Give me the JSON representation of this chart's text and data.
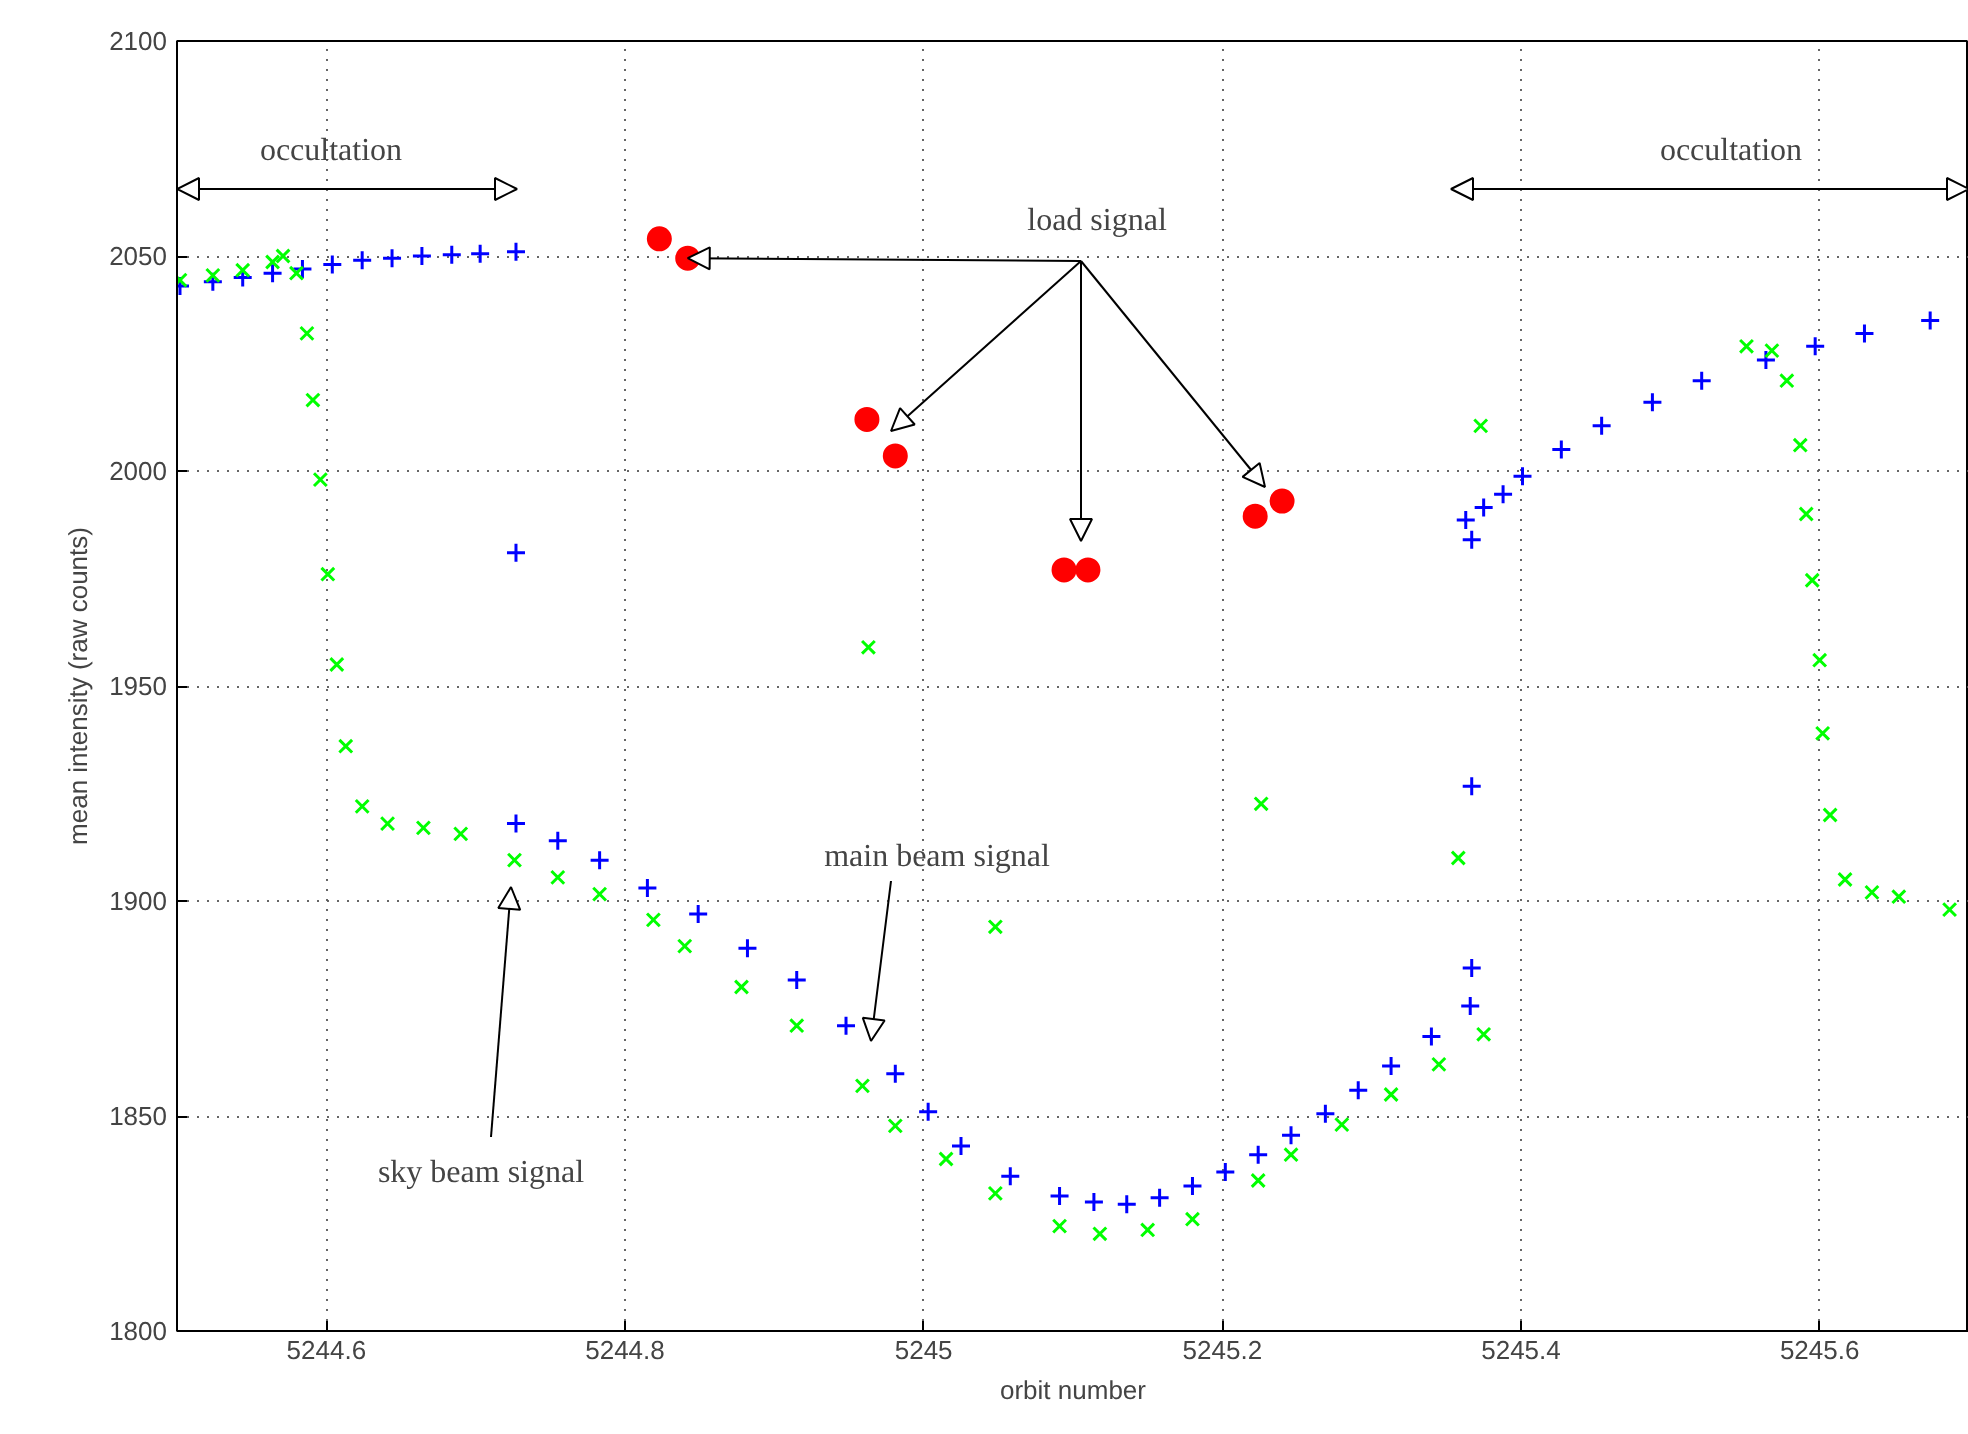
{
  "chart_data": {
    "type": "scatter",
    "xlabel": "orbit number",
    "ylabel": "mean intensity (raw counts)",
    "xlim": [
      5244.5,
      5245.7
    ],
    "ylim": [
      1800,
      2100
    ],
    "xticks": [
      5244.6,
      5244.8,
      5245,
      5245.2,
      5245.4,
      5245.6
    ],
    "yticks": [
      1800,
      1850,
      1900,
      1950,
      2000,
      2050,
      2100
    ],
    "grid": true,
    "series": [
      {
        "color": "#0000ff",
        "marker": "cross",
        "x": [
          5244.502,
          5244.524,
          5244.544,
          5244.564,
          5244.584,
          5244.604,
          5244.624,
          5244.644,
          5244.664,
          5244.684,
          5244.703,
          5244.727,
          5244.727,
          5244.727,
          5244.755,
          5244.783,
          5244.815,
          5244.849,
          5244.882,
          5244.915,
          5244.948,
          5244.981,
          5245.003,
          5245.025,
          5245.058,
          5245.091,
          5245.114,
          5245.136,
          5245.158,
          5245.18,
          5245.202,
          5245.224,
          5245.246,
          5245.269,
          5245.291,
          5245.313,
          5245.34,
          5245.366,
          5245.367,
          5245.367,
          5245.367,
          5245.363,
          5245.375,
          5245.388,
          5245.401,
          5245.427,
          5245.454,
          5245.488,
          5245.521,
          5245.564,
          5245.597,
          5245.63,
          5245.674
        ],
        "values": [
          2043,
          2044,
          2045,
          2046,
          2047,
          2048,
          2049,
          2049.5,
          2050,
          2050.3,
          2050.5,
          2051,
          1981,
          1918,
          1914,
          1909.5,
          1903,
          1897,
          1889,
          1881.6,
          1871,
          1859.8,
          1851,
          1843,
          1836,
          1831.4,
          1830,
          1829.5,
          1831,
          1833.7,
          1837,
          1841,
          1845.5,
          1850.5,
          1856,
          1861.6,
          1868.5,
          1875.6,
          1926.7,
          1884.4,
          1984,
          1988.6,
          1991.5,
          1994.6,
          1998.8,
          2005,
          2010.5,
          2016,
          2021,
          2025.8,
          2029,
          2032,
          2035
        ]
      },
      {
        "color": "#00ff00",
        "marker": "x",
        "x": [
          5244.502,
          5244.524,
          5244.544,
          5244.564,
          5244.571,
          5244.58,
          5244.587,
          5244.591,
          5244.596,
          5244.601,
          5244.607,
          5244.613,
          5244.624,
          5244.641,
          5244.665,
          5244.69,
          5244.726,
          5244.755,
          5244.783,
          5244.819,
          5244.84,
          5244.878,
          5244.915,
          5244.959,
          5244.981,
          5245.015,
          5245.048,
          5245.091,
          5245.118,
          5245.15,
          5245.18,
          5245.224,
          5245.246,
          5245.28,
          5245.313,
          5245.345,
          5245.375,
          5244.963,
          5245.048,
          5245.226,
          5245.358,
          5245.373,
          5245.551,
          5245.568,
          5245.578,
          5245.587,
          5245.591,
          5245.595,
          5245.6,
          5245.602,
          5245.607,
          5245.617,
          5245.635,
          5245.653,
          5245.687
        ],
        "values": [
          2044.4,
          2045.5,
          2046.7,
          2048.6,
          2050,
          2046,
          2032,
          2016.5,
          1998,
          1976,
          1955,
          1936,
          1922,
          1918,
          1917,
          1915.6,
          1909.5,
          1905.5,
          1901.6,
          1895.6,
          1889.5,
          1880,
          1871,
          1857,
          1847.7,
          1840,
          1832,
          1824.4,
          1822.6,
          1823.5,
          1826,
          1835,
          1841,
          1848,
          1855,
          1862,
          1869,
          1959,
          1894,
          1922.6,
          1910,
          2010.5,
          2029,
          2028,
          2021,
          2006,
          1990,
          1974.6,
          1956,
          1939,
          1920,
          1905,
          1902,
          1901,
          1898
        ]
      },
      {
        "color": "#ff0000",
        "marker": "circle",
        "x": [
          5244.823,
          5244.842,
          5244.962,
          5244.981,
          5245.094,
          5245.11,
          5245.222,
          5245.24
        ],
        "values": [
          2054,
          2049.5,
          2012,
          2003.5,
          1977,
          1977,
          1989.5,
          1993
        ]
      }
    ],
    "annotations": [
      "occultation",
      "occultation",
      {
        "text": "load signal",
        "x": 5244.842,
        "y": 2049.5
      },
      "main beam signal",
      "sky beam signal"
    ]
  }
}
